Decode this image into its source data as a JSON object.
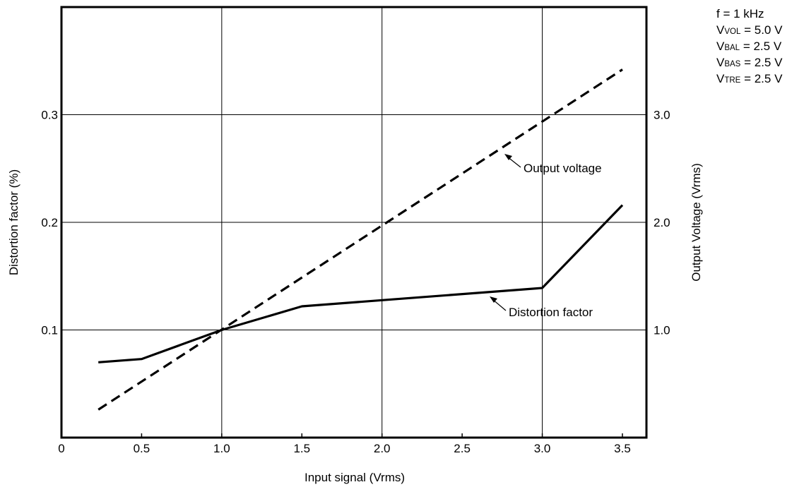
{
  "chart_data": {
    "type": "line",
    "xlabel": "Input signal (Vrms)",
    "ylabel_left": "Distortion factor (%)",
    "ylabel_right": "Output Voltage (Vrms)",
    "x_ticks": [
      "0",
      "0.5",
      "1.0",
      "1.5",
      "2.0",
      "2.5",
      "3.0",
      "3.5"
    ],
    "y_left_ticks": [
      "0.1",
      "0.2",
      "0.3"
    ],
    "y_right_ticks": [
      "1.0",
      "2.0",
      "3.0"
    ],
    "xlim": [
      0,
      3.65
    ],
    "ylim_left": [
      0,
      0.4
    ],
    "ylim_right": [
      0,
      4.0
    ],
    "grid": true,
    "series": [
      {
        "name": "Distortion factor",
        "axis": "left",
        "style": "solid",
        "x": [
          0.23,
          0.5,
          1.0,
          1.5,
          3.0,
          3.5
        ],
        "y": [
          0.07,
          0.073,
          0.1,
          0.122,
          0.139,
          0.216
        ]
      },
      {
        "name": "Output voltage",
        "axis": "right",
        "style": "dashed",
        "x": [
          0.23,
          3.5
        ],
        "y": [
          0.26,
          3.42
        ]
      }
    ],
    "conditions": [
      {
        "text": "f = 1 kHz"
      },
      {
        "main": "V",
        "sub": "VOL",
        "rest": " = 5.0 V"
      },
      {
        "main": "V",
        "sub": "BAL",
        "rest": " = 2.5 V"
      },
      {
        "main": "V",
        "sub": "BAS",
        "rest": " = 2.5 V"
      },
      {
        "main": "V",
        "sub": "TRE",
        "rest": " = 2.5 V"
      }
    ]
  }
}
